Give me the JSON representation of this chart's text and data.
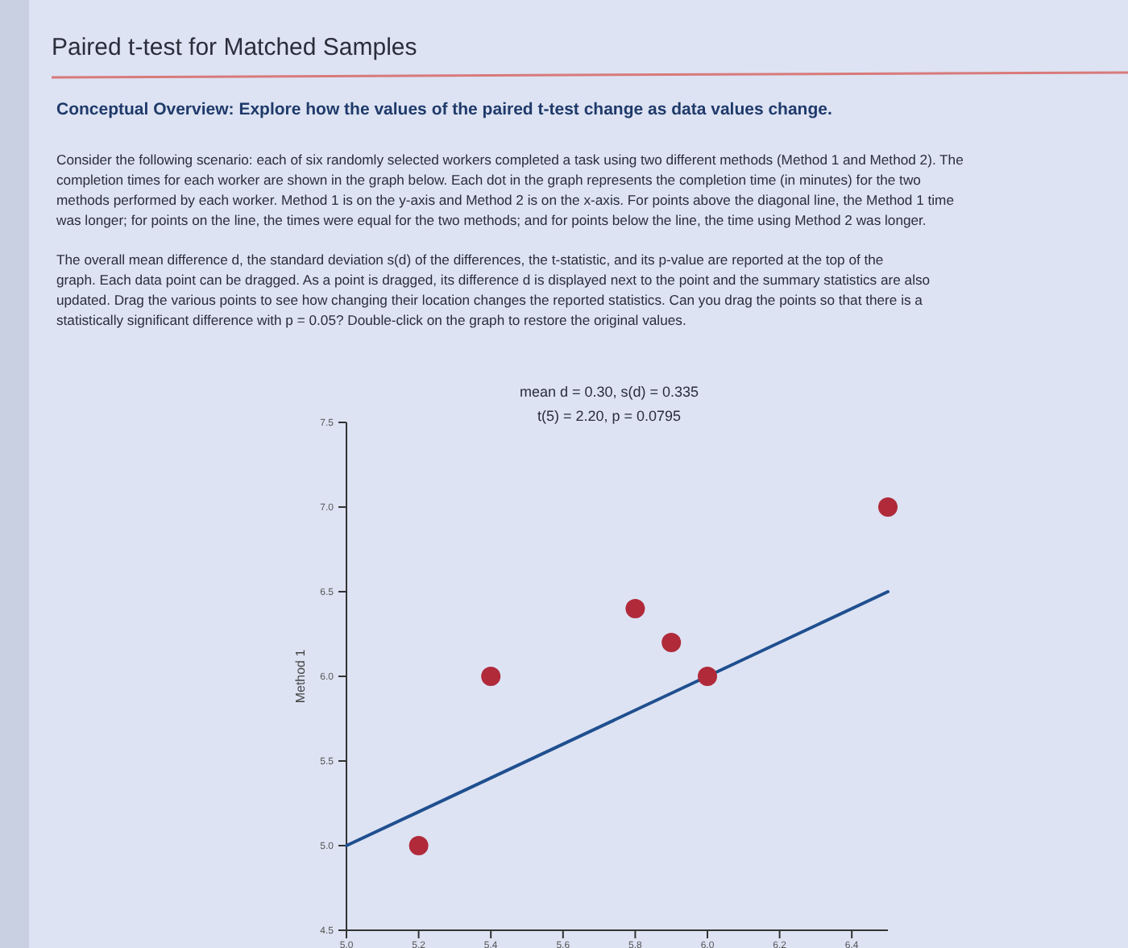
{
  "chart_data": {
    "type": "scatter",
    "title": "Paired t-test for Matched Samples",
    "subtitle": "Conceptual Overview: Explore how the values of the paired t-test change as data values change.",
    "annotations": [
      "Consider the following scenario: each of six randomly selected workers completed a task using two different methods (Method 1 and Method 2). The completion times for each worker are shown in the graph below. Each dot in the graph represents the completion time (in minutes) for the two methods performed by each worker. Method 1 is on the y-axis and Method 2 is on the x-axis. For points above the diagonal line, the Method 1 time was longer; for points on the line, the times were equal for the two methods; and for points below the line, the time using Method 2 was longer.",
      "The overall mean difference d, the standard deviation s(d) of the differences, the t-statistic, and its p-value are reported at the top of the graph. Each data point can be dragged. As a point is dragged, its difference d is displayed next to the point and the summary statistics are also updated. Drag the various points to see how changing their location changes the reported statistics. Can you drag the points so that there is a statistically significant difference with p = 0.05? Double-click on the graph to restore the original values.",
      "mean d = 0.30, s(d) = 0.335",
      "t(5) = 2.20, p = 0.0795"
    ],
    "ylabel": "Method 1",
    "series": [
      {
        "type": "line",
        "color": "#1f4f8f",
        "x": [
          5.0,
          6.5
        ],
        "values": [
          5.0,
          6.5
        ]
      },
      {
        "marker": "circle",
        "color": "#b02a3a",
        "x": [
          5.2,
          5.4,
          5.8,
          5.9,
          6.0,
          6.5
        ],
        "values": [
          5.0,
          6.0,
          6.4,
          6.2,
          6.0,
          7.0
        ]
      }
    ],
    "xlim": [
      5.0,
      6.5
    ],
    "ylim": [
      4.5,
      7.5
    ],
    "xticks": [
      {
        "value": 5.0,
        "label": "5.0"
      },
      {
        "value": 5.2,
        "label": "5.2"
      },
      {
        "value": 5.4,
        "label": "5.4"
      },
      {
        "value": 5.6,
        "label": "5.6"
      },
      {
        "value": 5.8,
        "label": "5.8"
      },
      {
        "value": 6.0,
        "label": "6.0"
      },
      {
        "value": 6.2,
        "label": "6.2"
      },
      {
        "value": 6.4,
        "label": "6.4"
      }
    ],
    "yticks": [
      {
        "value": 4.5,
        "label": "4.5"
      },
      {
        "value": 5.0,
        "label": "5.0"
      },
      {
        "value": 5.5,
        "label": "5.5"
      },
      {
        "value": 6.0,
        "label": "6.0"
      },
      {
        "value": 6.5,
        "label": "6.5"
      },
      {
        "value": 7.0,
        "label": "7.0"
      },
      {
        "value": 7.5,
        "label": "7.5"
      }
    ]
  }
}
